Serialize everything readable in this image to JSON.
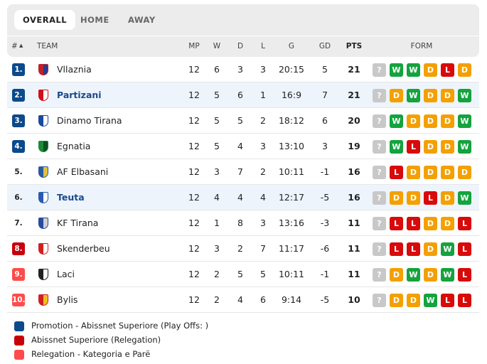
{
  "tabs": [
    "OVERALL",
    "HOME",
    "AWAY"
  ],
  "columns": {
    "rank": "#",
    "sort_icon": "▲",
    "team": "TEAM",
    "mp": "MP",
    "w": "W",
    "d": "D",
    "l": "L",
    "g": "G",
    "gd": "GD",
    "pts": "PTS",
    "form": "FORM"
  },
  "colors": {
    "promotion": "#0b4a8b",
    "relegation_playoff": "#c8000a",
    "relegation": "#ff4b4b",
    "W": "#14a33e",
    "D": "#f3a000",
    "L": "#d80a0a",
    "unknown": "#c8c8c8",
    "highlight": "#eef4fc"
  },
  "rows": [
    {
      "rank": "1.",
      "zone": "promotion",
      "team": "Vllaznia",
      "logo": [
        "#c0202a",
        "#2a3c8c"
      ],
      "mp": "12",
      "w": "6",
      "d": "3",
      "l": "3",
      "g": "20:15",
      "gd": "5",
      "pts": "21",
      "form": [
        "?",
        "W",
        "W",
        "D",
        "L",
        "D"
      ],
      "hl": false
    },
    {
      "rank": "2.",
      "zone": "promotion",
      "team": "Partizani",
      "logo": [
        "#d0101a",
        "#ffffff"
      ],
      "mp": "12",
      "w": "5",
      "d": "6",
      "l": "1",
      "g": "16:9",
      "gd": "7",
      "pts": "21",
      "form": [
        "?",
        "D",
        "W",
        "D",
        "D",
        "W"
      ],
      "hl": true
    },
    {
      "rank": "3.",
      "zone": "promotion",
      "team": "Dinamo Tirana",
      "logo": [
        "#1a4aa0",
        "#ffffff"
      ],
      "mp": "12",
      "w": "5",
      "d": "5",
      "l": "2",
      "g": "18:12",
      "gd": "6",
      "pts": "20",
      "form": [
        "?",
        "W",
        "D",
        "D",
        "D",
        "W"
      ],
      "hl": false
    },
    {
      "rank": "4.",
      "zone": "promotion",
      "team": "Egnatia",
      "logo": [
        "#1a8a3a",
        "#0a5020"
      ],
      "mp": "12",
      "w": "5",
      "d": "4",
      "l": "3",
      "g": "13:10",
      "gd": "3",
      "pts": "19",
      "form": [
        "?",
        "W",
        "L",
        "D",
        "D",
        "W"
      ],
      "hl": false
    },
    {
      "rank": "5.",
      "zone": "",
      "team": "AF Elbasani",
      "logo": [
        "#2a5aa0",
        "#e0c040"
      ],
      "mp": "12",
      "w": "3",
      "d": "7",
      "l": "2",
      "g": "10:11",
      "gd": "-1",
      "pts": "16",
      "form": [
        "?",
        "L",
        "D",
        "D",
        "D",
        "D"
      ],
      "hl": false
    },
    {
      "rank": "6.",
      "zone": "",
      "team": "Teuta",
      "logo": [
        "#2a5ab0",
        "#ffffff"
      ],
      "mp": "12",
      "w": "4",
      "d": "4",
      "l": "4",
      "g": "12:17",
      "gd": "-5",
      "pts": "16",
      "form": [
        "?",
        "D",
        "D",
        "L",
        "D",
        "W"
      ],
      "hl": true
    },
    {
      "rank": "7.",
      "zone": "",
      "team": "KF Tirana",
      "logo": [
        "#2a4aa0",
        "#d0d0d0"
      ],
      "mp": "12",
      "w": "1",
      "d": "8",
      "l": "3",
      "g": "13:16",
      "gd": "-3",
      "pts": "11",
      "form": [
        "?",
        "L",
        "L",
        "D",
        "D",
        "L"
      ],
      "hl": false
    },
    {
      "rank": "8.",
      "zone": "relegation_playoff",
      "team": "Skenderbeu",
      "logo": [
        "#d02020",
        "#ffffff"
      ],
      "mp": "12",
      "w": "3",
      "d": "2",
      "l": "7",
      "g": "11:17",
      "gd": "-6",
      "pts": "11",
      "form": [
        "?",
        "L",
        "L",
        "D",
        "W",
        "L"
      ],
      "hl": false
    },
    {
      "rank": "9.",
      "zone": "relegation",
      "team": "Laci",
      "logo": [
        "#222222",
        "#ffffff"
      ],
      "mp": "12",
      "w": "2",
      "d": "5",
      "l": "5",
      "g": "10:11",
      "gd": "-1",
      "pts": "11",
      "form": [
        "?",
        "D",
        "W",
        "D",
        "W",
        "L"
      ],
      "hl": false
    },
    {
      "rank": "10.",
      "zone": "relegation",
      "team": "Bylis",
      "logo": [
        "#d02020",
        "#f0c020"
      ],
      "mp": "12",
      "w": "2",
      "d": "4",
      "l": "6",
      "g": "9:14",
      "gd": "-5",
      "pts": "10",
      "form": [
        "?",
        "D",
        "D",
        "W",
        "L",
        "L"
      ],
      "hl": false
    }
  ],
  "legend": [
    {
      "zone": "promotion",
      "label": "Promotion - Abissnet Superiore (Play Offs: )"
    },
    {
      "zone": "relegation_playoff",
      "label": "Abissnet Superiore (Relegation)"
    },
    {
      "zone": "relegation",
      "label": "Relegation - Kategoria e Parë"
    }
  ]
}
